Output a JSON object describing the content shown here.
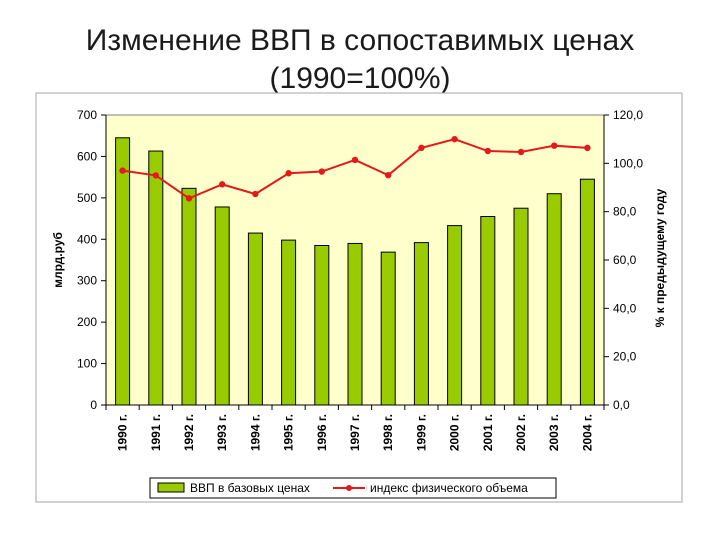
{
  "title_line1": "Изменение ВВП в сопоставимых ценах",
  "title_line2": "(1990=100%)",
  "chart_data": {
    "type": "bar",
    "categories": [
      "1990 г.",
      "1991 г.",
      "1992 г.",
      "1993 г.",
      "1994 г.",
      "1995 г.",
      "1996 г.",
      "1997 г.",
      "1998 г.",
      "1999 г.",
      "2000 г.",
      "2001 г.",
      "2002 г.",
      "2003 г.",
      "2004 г."
    ],
    "series": [
      {
        "name": "ВВП в базовых ценах",
        "type": "bar",
        "axis": "left",
        "color": "#99CC00",
        "values": [
          645,
          613,
          523,
          478,
          415,
          398,
          385,
          390,
          369,
          392,
          433,
          455,
          475,
          510,
          545
        ]
      },
      {
        "name": "индекс физического объема",
        "type": "line",
        "axis": "right",
        "color": "#E31A1C",
        "values": [
          97.0,
          95.0,
          85.5,
          91.3,
          87.3,
          95.9,
          96.6,
          101.4,
          95.1,
          106.4,
          110.0,
          105.1,
          104.7,
          107.3,
          106.4
        ]
      }
    ],
    "ylabel": "млрд.руб",
    "ylim": [
      0,
      700
    ],
    "yticks": [
      "0",
      "100",
      "200",
      "300",
      "400",
      "500",
      "600",
      "700"
    ],
    "y2label": "% к предыдущему году",
    "y2lim": [
      0,
      120
    ],
    "y2ticks": [
      "0,0",
      "20,0",
      "40,0",
      "60,0",
      "80,0",
      "100,0",
      "120,0"
    ],
    "grid": false,
    "plot_background": "#FFFFCC",
    "legend_position": "bottom"
  }
}
